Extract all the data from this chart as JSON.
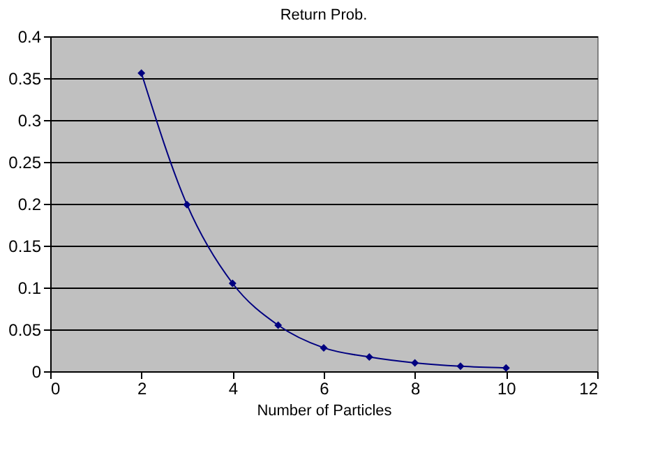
{
  "chart_data": {
    "type": "line",
    "title": "Return Prob.",
    "xlabel": "Number of Particles",
    "x": [
      2,
      3,
      4,
      5,
      6,
      7,
      8,
      9,
      10
    ],
    "series": [
      {
        "color": "#000080",
        "values": [
          0.356,
          0.199,
          0.105,
          0.055,
          0.028,
          0.017,
          0.01,
          0.006,
          0.004
        ]
      }
    ],
    "xlim": [
      0,
      12
    ],
    "xticks": [
      0,
      2,
      4,
      6,
      8,
      10,
      12
    ],
    "ylim": [
      0,
      0.4
    ],
    "yticks": [
      0,
      0.05,
      0.1,
      0.15,
      0.2,
      0.25,
      0.3,
      0.35,
      0.4
    ],
    "grid": "y",
    "marker": "diamond",
    "line_style": "solid",
    "legend": false
  }
}
